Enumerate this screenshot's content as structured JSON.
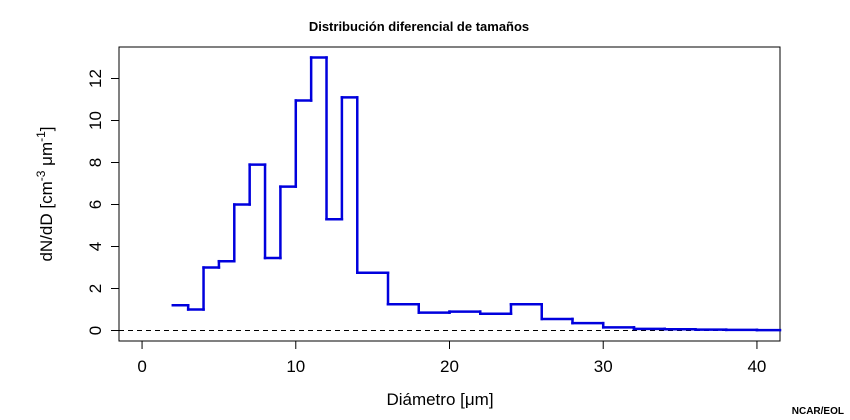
{
  "chart_data": {
    "type": "line",
    "step": true,
    "title": "Distribución diferencial de tamaños",
    "xlabel": {
      "main": "Diámetro",
      "unit": "μm"
    },
    "ylabel": {
      "main": "dN/dD",
      "unit_cm": "cm",
      "exp_cm": "-3",
      "unit_um": "μm",
      "exp_um": "-1"
    },
    "xlim": [
      -1.5,
      41.5
    ],
    "ylim": [
      -0.5,
      13.5
    ],
    "xticks": [
      0,
      10,
      20,
      30,
      40
    ],
    "yticks": [
      0,
      2,
      4,
      6,
      8,
      10,
      12
    ],
    "reference_line": {
      "y": 0,
      "style": "dashed",
      "color": "#000000"
    },
    "series": [
      {
        "color": "#0000dd",
        "bins": [
          {
            "x0": 2,
            "x1": 3,
            "y": 1.2
          },
          {
            "x0": 3,
            "x1": 4,
            "y": 1.0
          },
          {
            "x0": 4,
            "x1": 5,
            "y": 3.0
          },
          {
            "x0": 5,
            "x1": 6,
            "y": 3.3
          },
          {
            "x0": 6,
            "x1": 7,
            "y": 6.0
          },
          {
            "x0": 7,
            "x1": 8,
            "y": 7.9
          },
          {
            "x0": 8,
            "x1": 9,
            "y": 3.45
          },
          {
            "x0": 9,
            "x1": 10,
            "y": 6.85
          },
          {
            "x0": 10,
            "x1": 11,
            "y": 10.95
          },
          {
            "x0": 11,
            "x1": 12,
            "y": 13.0
          },
          {
            "x0": 12,
            "x1": 13,
            "y": 5.3
          },
          {
            "x0": 13,
            "x1": 14,
            "y": 11.1
          },
          {
            "x0": 14,
            "x1": 16,
            "y": 2.75
          },
          {
            "x0": 16,
            "x1": 18,
            "y": 1.25
          },
          {
            "x0": 18,
            "x1": 20,
            "y": 0.85
          },
          {
            "x0": 20,
            "x1": 22,
            "y": 0.9
          },
          {
            "x0": 22,
            "x1": 24,
            "y": 0.8
          },
          {
            "x0": 24,
            "x1": 26,
            "y": 1.25
          },
          {
            "x0": 26,
            "x1": 28,
            "y": 0.55
          },
          {
            "x0": 28,
            "x1": 30,
            "y": 0.35
          },
          {
            "x0": 30,
            "x1": 32,
            "y": 0.15
          },
          {
            "x0": 32,
            "x1": 34,
            "y": 0.08
          },
          {
            "x0": 34,
            "x1": 36,
            "y": 0.06
          },
          {
            "x0": 36,
            "x1": 38,
            "y": 0.04
          },
          {
            "x0": 38,
            "x1": 40,
            "y": 0.03
          },
          {
            "x0": 40,
            "x1": 41.5,
            "y": 0.02
          }
        ]
      }
    ]
  },
  "credit": "NCAR/EOL"
}
